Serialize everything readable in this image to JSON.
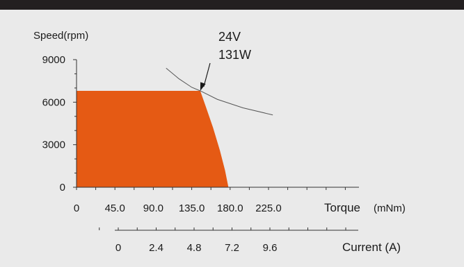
{
  "chart_data": {
    "type": "area",
    "ylabel": "Speed(rpm)",
    "xlabel": "Torque",
    "xunit": "(mNm)",
    "secondary_xlabel": "Current (A)",
    "y_ticks": [
      0,
      3000,
      6000,
      9000
    ],
    "x_ticks": [
      "0",
      "45.0",
      "90.0",
      "135.0",
      "180.0",
      "225.0"
    ],
    "x_tick_values": [
      0,
      45,
      90,
      135,
      180,
      225
    ],
    "current_ticks": [
      "0",
      "2.4",
      "4.8",
      "7.2",
      "9.6"
    ],
    "current_tick_values": [
      0,
      2.4,
      4.8,
      7.2,
      9.6
    ],
    "xlim": [
      0,
      225
    ],
    "ylim": [
      0,
      9000
    ],
    "current_lim": [
      0,
      9.6
    ],
    "fill_color": "#e55a14",
    "operating_region": [
      {
        "x": 0,
        "y": 6800
      },
      {
        "x": 145,
        "y": 6800
      },
      {
        "x": 152,
        "y": 5600
      },
      {
        "x": 160,
        "y": 4200
      },
      {
        "x": 168,
        "y": 2600
      },
      {
        "x": 174,
        "y": 1200
      },
      {
        "x": 178,
        "y": 0
      },
      {
        "x": 0,
        "y": 0
      }
    ],
    "power_curve": [
      {
        "x": 105,
        "y": 8400
      },
      {
        "x": 120,
        "y": 7650
      },
      {
        "x": 135,
        "y": 7050
      },
      {
        "x": 145,
        "y": 6800
      },
      {
        "x": 165,
        "y": 6200
      },
      {
        "x": 195,
        "y": 5600
      },
      {
        "x": 230,
        "y": 5100
      }
    ],
    "annotation": {
      "line1": "24V",
      "line2": "131W",
      "point": {
        "x": 145,
        "y": 6800
      }
    }
  }
}
